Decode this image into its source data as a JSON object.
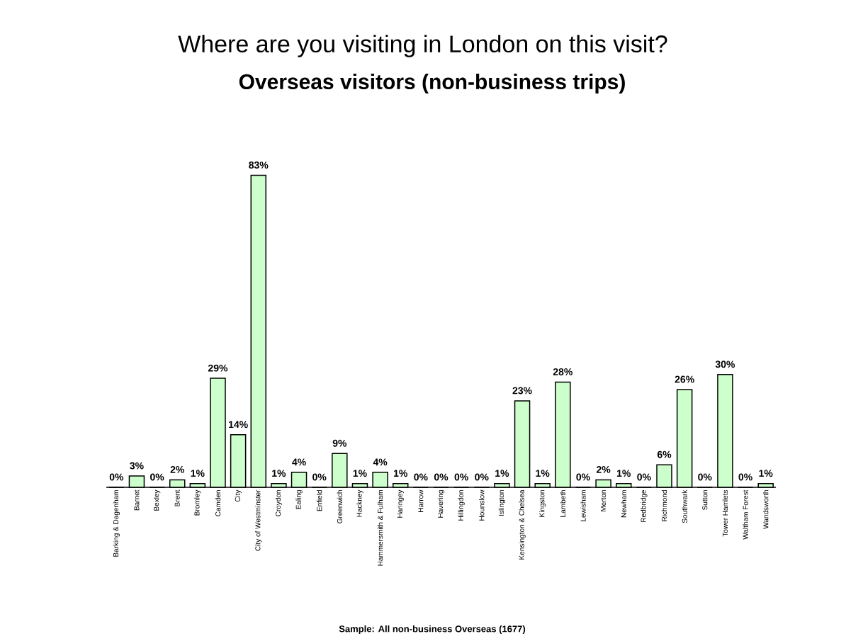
{
  "chart_data": {
    "type": "bar",
    "title": "Where are you visiting in London on this visit?",
    "subtitle": "Overseas visitors (non-business trips)",
    "categories": [
      "Barking & Dagenham",
      "Barnet",
      "Bexley",
      "Brent",
      "Bromley",
      "Camden",
      "City",
      "City of Westminster",
      "Croydon",
      "Ealing",
      "Enfield",
      "Greenwich",
      "Hackney",
      "Hammersmith & Fulham",
      "Haringey",
      "Harrow",
      "Havering",
      "Hillingdon",
      "Hounslow",
      "Islington",
      "Kensington & Chelsea",
      "Kingston",
      "Lambeth",
      "Lewisham",
      "Merton",
      "Newham",
      "Redbridge",
      "Richmond",
      "Southwark",
      "Sutton",
      "Tower Hamlets",
      "Waltham Forest",
      "Wandsworth"
    ],
    "values": [
      0,
      3,
      0,
      2,
      1,
      29,
      14,
      83,
      1,
      4,
      0,
      9,
      1,
      4,
      1,
      0,
      0,
      0,
      0,
      1,
      23,
      1,
      28,
      0,
      2,
      1,
      0,
      6,
      26,
      0,
      30,
      0,
      1
    ],
    "value_labels": [
      "0%",
      "3%",
      "0%",
      "2%",
      "1%",
      "29%",
      "14%",
      "83%",
      "1%",
      "4%",
      "0%",
      "9%",
      "1%",
      "4%",
      "1%",
      "0%",
      "0%",
      "0%",
      "0%",
      "1%",
      "23%",
      "1%",
      "28%",
      "0%",
      "2%",
      "1%",
      "0%",
      "6%",
      "26%",
      "0%",
      "30%",
      "0%",
      "1%"
    ],
    "color": "#ccffcc",
    "annotations": [
      "Sample: All non-business Overseas (1677)"
    ]
  }
}
